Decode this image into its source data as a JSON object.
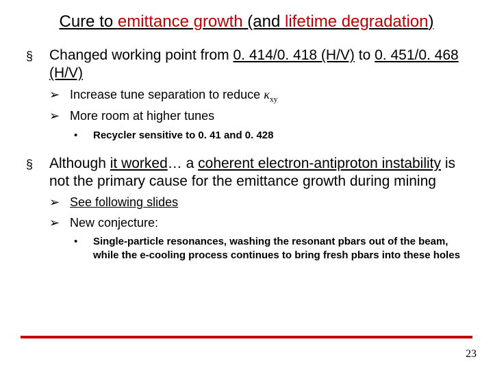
{
  "title": {
    "pre": "Cure to ",
    "hi1": "emittance growth",
    "mid": " (and ",
    "hi2": "lifetime degradation",
    "post": ")"
  },
  "p1": {
    "pre": "Changed working point from ",
    "u1": "0. 414/0. 418 (H/V)",
    "mid": " to ",
    "u2": "0. 451/0. 468 (H/V)"
  },
  "s1a": "Increase tune separation to reduce ",
  "s1a_sym": "κ",
  "s1a_sub": "xy",
  "s1b": "More room at higher tunes",
  "s1b1": "Recycler sensitive to 0. 41 and 0. 428",
  "p2": {
    "pre": "Although ",
    "u1": "it worked",
    "mid1": "… a ",
    "u2": "coherent electron-antiproton instability",
    "mid2": " is not the primary cause for the emittance growth during mining"
  },
  "s2a": "See following slides",
  "s2b": "New conjecture:",
  "s2b1": "Single-particle resonances, washing the resonant pbars out of the beam, while the e-cooling process continues to bring fresh pbars into these holes",
  "bullets": {
    "l1": "§",
    "l2": "➢",
    "l3": "•"
  },
  "pagenum": "23",
  "colors": {
    "accent": "#c00000"
  }
}
